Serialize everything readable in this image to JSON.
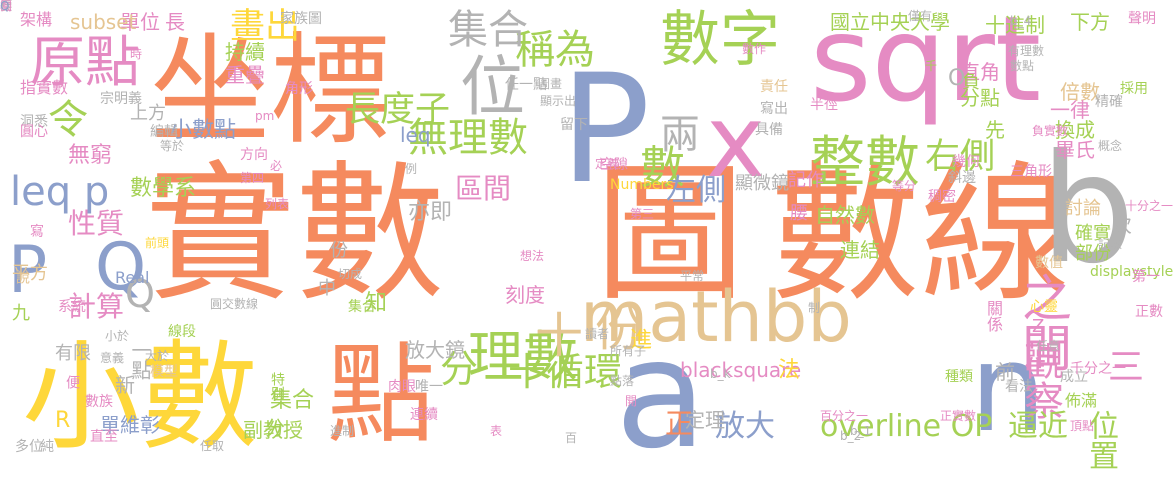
{
  "palette": {
    "orange": "#f58a5e",
    "blue": "#8c9fcb",
    "pink": "#e58bc3",
    "green": "#a5d155",
    "yellow": "#fed73a",
    "tan": "#e5c592",
    "gray": "#b3b3b3"
  },
  "words": [
    {
      "text": "實數",
      "color": "orange"
    },
    {
      "text": "圖",
      "color": "orange"
    },
    {
      "text": "數線",
      "color": "orange"
    },
    {
      "text": "坐標",
      "color": "orange"
    },
    {
      "text": "sqrt",
      "color": "pink"
    },
    {
      "text": "小數",
      "color": "yellow"
    },
    {
      "text": "點",
      "color": "orange"
    },
    {
      "text": "P",
      "color": "blue"
    },
    {
      "text": "x",
      "color": "pink"
    },
    {
      "text": "b",
      "color": "gray"
    },
    {
      "text": "a",
      "color": "blue"
    },
    {
      "text": "n",
      "color": "blue"
    },
    {
      "text": "mathbb",
      "color": "tan"
    },
    {
      "text": "數字",
      "color": "green"
    },
    {
      "text": "位",
      "color": "gray"
    },
    {
      "text": "原點",
      "color": "pink"
    },
    {
      "text": "理數",
      "color": "green"
    },
    {
      "text": "整數",
      "color": "green"
    },
    {
      "text": "無理數",
      "color": "green"
    },
    {
      "text": "稱為",
      "color": "green"
    },
    {
      "text": "之間",
      "color": "pink"
    },
    {
      "text": "集合",
      "color": "gray"
    },
    {
      "text": "長度",
      "color": "green"
    },
    {
      "text": "子",
      "color": "green"
    },
    {
      "text": "畫出",
      "color": "yellow"
    },
    {
      "text": "令",
      "color": "green"
    },
    {
      "text": "leq p",
      "color": "blue"
    },
    {
      "text": "P",
      "color": "blue"
    },
    {
      "text": "Q",
      "color": "blue"
    },
    {
      "text": "十",
      "color": "tan"
    },
    {
      "text": "份",
      "color": "tan"
    },
    {
      "text": "分",
      "color": "green"
    },
    {
      "text": "十循環",
      "color": "green"
    },
    {
      "text": "觀察",
      "color": "pink"
    },
    {
      "text": "右側",
      "color": "green"
    },
    {
      "text": "兩",
      "color": "gray"
    },
    {
      "text": "數",
      "color": "green"
    },
    {
      "text": "左側",
      "color": "blue"
    },
    {
      "text": "Q",
      "color": "gray"
    },
    {
      "text": "三",
      "color": "pink"
    },
    {
      "text": "overline OP",
      "color": "green"
    },
    {
      "text": "逼近",
      "color": "green"
    },
    {
      "text": "位置",
      "color": "green"
    },
    {
      "text": "放大",
      "color": "blue"
    },
    {
      "text": "blacksquare",
      "color": "pink"
    },
    {
      "text": "計算",
      "color": "pink"
    },
    {
      "text": "區間",
      "color": "pink"
    },
    {
      "text": "性質",
      "color": "pink"
    },
    {
      "text": "無窮",
      "color": "pink"
    },
    {
      "text": "集合",
      "color": "green"
    },
    {
      "text": "十進制",
      "color": "green"
    },
    {
      "text": "國立中央大學",
      "color": "green"
    },
    {
      "text": "下方",
      "color": "green"
    },
    {
      "text": "單位",
      "color": "pink"
    },
    {
      "text": "長",
      "color": "pink"
    },
    {
      "text": "subset",
      "color": "tan"
    },
    {
      "text": "持續",
      "color": "green"
    },
    {
      "text": "重疊",
      "color": "pink"
    },
    {
      "text": "leq",
      "color": "blue"
    },
    {
      "text": "小數點",
      "color": "blue"
    },
    {
      "text": "數學系",
      "color": "green"
    },
    {
      "text": "倍數",
      "color": "tan"
    },
    {
      "text": "一律",
      "color": "pink"
    },
    {
      "text": "分點",
      "color": "green"
    },
    {
      "text": "換成",
      "color": "green"
    },
    {
      "text": "畢氏",
      "color": "pink"
    },
    {
      "text": "亦即",
      "color": "gray"
    },
    {
      "text": "自然數",
      "color": "green"
    },
    {
      "text": "連結",
      "color": "green"
    },
    {
      "text": "刻度",
      "color": "pink"
    },
    {
      "text": "放大鏡",
      "color": "gray"
    },
    {
      "text": "定理",
      "color": "gray"
    },
    {
      "text": "正",
      "color": "orange"
    },
    {
      "text": "副教授",
      "color": "green"
    },
    {
      "text": "單維彰",
      "color": "blue"
    },
    {
      "text": "一點",
      "color": "gray"
    },
    {
      "text": "分",
      "color": "green"
    },
    {
      "text": "有限",
      "color": "gray"
    },
    {
      "text": "R",
      "color": "yellow"
    },
    {
      "text": "平方",
      "color": "tan"
    },
    {
      "text": "九",
      "color": "green"
    },
    {
      "text": "上方",
      "color": "gray"
    },
    {
      "text": "架構",
      "color": "pink"
    },
    {
      "text": "指實數",
      "color": "pink"
    },
    {
      "text": "顯微鏡",
      "color": "gray"
    },
    {
      "text": "記作",
      "color": "pink"
    },
    {
      "text": "進",
      "color": "yellow"
    },
    {
      "text": "法",
      "color": "yellow"
    },
    {
      "text": "前",
      "color": "gray"
    },
    {
      "text": "次",
      "color": "gray"
    },
    {
      "text": "中",
      "color": "gray"
    },
    {
      "text": "知",
      "color": "green"
    },
    {
      "text": "份",
      "color": "gray"
    },
    {
      "text": "新",
      "color": "gray"
    },
    {
      "text": "直角",
      "color": "pink"
    },
    {
      "text": "先",
      "color": "green"
    },
    {
      "text": "腰",
      "color": "pink"
    },
    {
      "text": "確實",
      "color": "green"
    },
    {
      "text": "部份",
      "color": "green"
    },
    {
      "text": "討論",
      "color": "tan"
    },
    {
      "text": "負",
      "color": "green"
    },
    {
      "text": "O",
      "color": "gray"
    },
    {
      "text": "Z",
      "color": "pink"
    },
    {
      "text": "Numbers",
      "color": "yellow"
    },
    {
      "text": "Real",
      "color": "blue"
    },
    {
      "text": "家族圖",
      "color": "gray"
    },
    {
      "text": "聲明",
      "color": "pink"
    },
    {
      "text": "採用",
      "color": "green"
    },
    {
      "text": "正數",
      "color": "pink"
    },
    {
      "text": "佈滿",
      "color": "green"
    },
    {
      "text": "關係",
      "color": "pink"
    },
    {
      "text": "看法",
      "color": "gray"
    },
    {
      "text": "成立",
      "color": "gray"
    },
    {
      "text": "種類",
      "color": "green"
    },
    {
      "text": "肉眼",
      "color": "pink"
    },
    {
      "text": "連續",
      "color": "pink"
    },
    {
      "text": "唯一",
      "color": "gray"
    },
    {
      "text": "集合",
      "color": "green"
    },
    {
      "text": "線段",
      "color": "green"
    },
    {
      "text": "系統",
      "color": "pink"
    },
    {
      "text": "模型",
      "color": "tan"
    },
    {
      "text": "特別",
      "color": "green"
    },
    {
      "text": "數族",
      "color": "pink"
    },
    {
      "text": "直至",
      "color": "pink"
    },
    {
      "text": "多位",
      "color": "gray"
    },
    {
      "text": "純",
      "color": "gray"
    },
    {
      "text": "便",
      "color": "pink"
    },
    {
      "text": "說",
      "color": "tan"
    },
    {
      "text": "寫",
      "color": "pink"
    },
    {
      "text": "方向",
      "color": "pink"
    },
    {
      "text": "編輯",
      "color": "gray"
    },
    {
      "text": "角形",
      "color": "pink"
    },
    {
      "text": "宗明義",
      "color": "gray"
    },
    {
      "text": "洞悉",
      "color": "gray"
    },
    {
      "text": "圓心",
      "color": "pink"
    },
    {
      "text": "任一點",
      "color": "gray"
    },
    {
      "text": "留下",
      "color": "gray"
    },
    {
      "text": "空隙",
      "color": "pink"
    },
    {
      "text": "具備",
      "color": "gray"
    },
    {
      "text": "責任",
      "color": "tan"
    },
    {
      "text": "寫出",
      "color": "gray"
    },
    {
      "text": "半徑",
      "color": "pink"
    },
    {
      "text": "等分",
      "color": "pink"
    },
    {
      "text": "精確",
      "color": "gray"
    },
    {
      "text": "概念",
      "color": "gray"
    },
    {
      "text": "幾何",
      "color": "pink"
    },
    {
      "text": "斜邊",
      "color": "gray"
    },
    {
      "text": "稠密",
      "color": "pink"
    },
    {
      "text": "三角形",
      "color": "pink"
    },
    {
      "text": "負實數",
      "color": "pink"
    },
    {
      "text": "displaystyle",
      "color": "green"
    },
    {
      "text": "記數",
      "color": "gray"
    },
    {
      "text": "第一",
      "color": "pink"
    },
    {
      "text": "數值",
      "color": "tan"
    },
    {
      "text": "心靈",
      "color": "yellow"
    },
    {
      "text": "任意",
      "color": "gray"
    },
    {
      "text": "頂點",
      "color": "pink"
    },
    {
      "text": "正實數",
      "color": "pink"
    },
    {
      "text": "百分之一",
      "color": "pink"
    },
    {
      "text": "千分之一",
      "color": "pink"
    },
    {
      "text": "十分之一",
      "color": "pink"
    },
    {
      "text": "僅有",
      "color": "gray"
    },
    {
      "text": "圖畫",
      "color": "gray"
    },
    {
      "text": "顯示出",
      "color": "gray"
    },
    {
      "text": "有理數",
      "color": "gray"
    },
    {
      "text": "數點",
      "color": "gray"
    },
    {
      "text": "數作",
      "color": "pink"
    },
    {
      "text": "第四",
      "color": "pink"
    },
    {
      "text": "切成",
      "color": "gray"
    },
    {
      "text": "想法",
      "color": "pink"
    },
    {
      "text": "讀者",
      "color": "gray"
    },
    {
      "text": "所有子",
      "color": "gray"
    },
    {
      "text": "前頭",
      "color": "yellow"
    },
    {
      "text": "制",
      "color": "gray"
    },
    {
      "text": "平常",
      "color": "gray"
    },
    {
      "text": "大於",
      "color": "gray"
    },
    {
      "text": "小於",
      "color": "gray"
    },
    {
      "text": "任取",
      "color": "gray"
    },
    {
      "text": "點落",
      "color": "gray"
    },
    {
      "text": "開",
      "color": "pink"
    },
    {
      "text": "進制",
      "color": "gray"
    },
    {
      "text": "表",
      "color": "pink"
    },
    {
      "text": "列表",
      "color": "pink"
    },
    {
      "text": "例",
      "color": "gray"
    },
    {
      "text": "定義",
      "color": "pink"
    },
    {
      "text": "第三",
      "color": "pink"
    },
    {
      "text": "必",
      "color": "pink"
    },
    {
      "text": "時",
      "color": "pink"
    },
    {
      "text": "等於",
      "color": "gray"
    },
    {
      "text": "圓交數線",
      "color": "gray"
    },
    {
      "text": "意義",
      "color": "gray"
    },
    {
      "text": "b_k",
      "color": "gray"
    },
    {
      "text": "b_4",
      "color": "gray"
    },
    {
      "text": "b_1",
      "color": "gray"
    },
    {
      "text": "b_2",
      "color": "gray"
    },
    {
      "text": "pm",
      "color": "pink"
    },
    {
      "text": "千",
      "color": "green"
    },
    {
      "text": "百",
      "color": "gray"
    },
    {
      "text": "長",
      "color": "pink"
    },
    {
      "text": "標",
      "color": "gray"
    },
    {
      "text": "閱",
      "color": "pink"
    },
    {
      "text": "Q",
      "color": "blue"
    }
  ]
}
